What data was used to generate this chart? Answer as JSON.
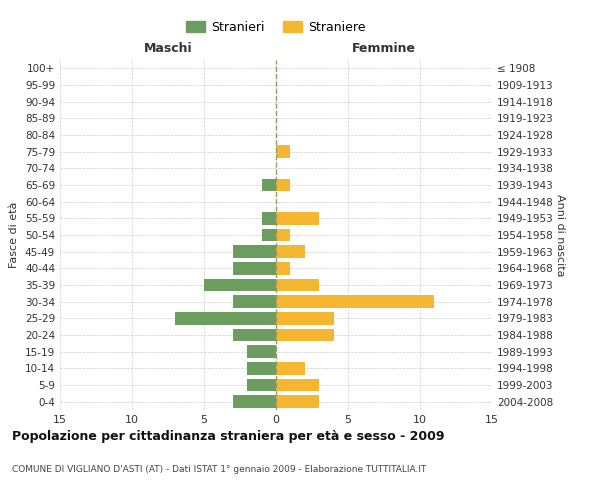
{
  "age_groups": [
    "0-4",
    "5-9",
    "10-14",
    "15-19",
    "20-24",
    "25-29",
    "30-34",
    "35-39",
    "40-44",
    "45-49",
    "50-54",
    "55-59",
    "60-64",
    "65-69",
    "70-74",
    "75-79",
    "80-84",
    "85-89",
    "90-94",
    "95-99",
    "100+"
  ],
  "birth_years": [
    "2004-2008",
    "1999-2003",
    "1994-1998",
    "1989-1993",
    "1984-1988",
    "1979-1983",
    "1974-1978",
    "1969-1973",
    "1964-1968",
    "1959-1963",
    "1954-1958",
    "1949-1953",
    "1944-1948",
    "1939-1943",
    "1934-1938",
    "1929-1933",
    "1924-1928",
    "1919-1923",
    "1914-1918",
    "1909-1913",
    "≤ 1908"
  ],
  "maschi": [
    3,
    2,
    2,
    2,
    3,
    7,
    3,
    5,
    3,
    3,
    1,
    1,
    0,
    1,
    0,
    0,
    0,
    0,
    0,
    0,
    0
  ],
  "femmine": [
    3,
    3,
    2,
    0,
    4,
    4,
    11,
    3,
    1,
    2,
    1,
    3,
    0,
    1,
    0,
    1,
    0,
    0,
    0,
    0,
    0
  ],
  "maschi_color": "#6b9e5e",
  "femmine_color": "#f5b731",
  "xlim": 15,
  "xlabel_left": "Maschi",
  "xlabel_right": "Femmine",
  "ylabel_left": "Fasce di età",
  "ylabel_right": "Anni di nascita",
  "legend_stranieri": "Stranieri",
  "legend_straniere": "Straniere",
  "title": "Popolazione per cittadinanza straniera per età e sesso - 2009",
  "subtitle": "COMUNE DI VIGLIANO D'ASTI (AT) - Dati ISTAT 1° gennaio 2009 - Elaborazione TUTTITALIA.IT",
  "xticks": [
    -15,
    -10,
    -5,
    0,
    5,
    10,
    15
  ],
  "xtick_labels": [
    "15",
    "10",
    "5",
    "0",
    "5",
    "10",
    "15"
  ],
  "background_color": "#ffffff",
  "grid_color": "#cccccc",
  "center_line_color": "#999966"
}
